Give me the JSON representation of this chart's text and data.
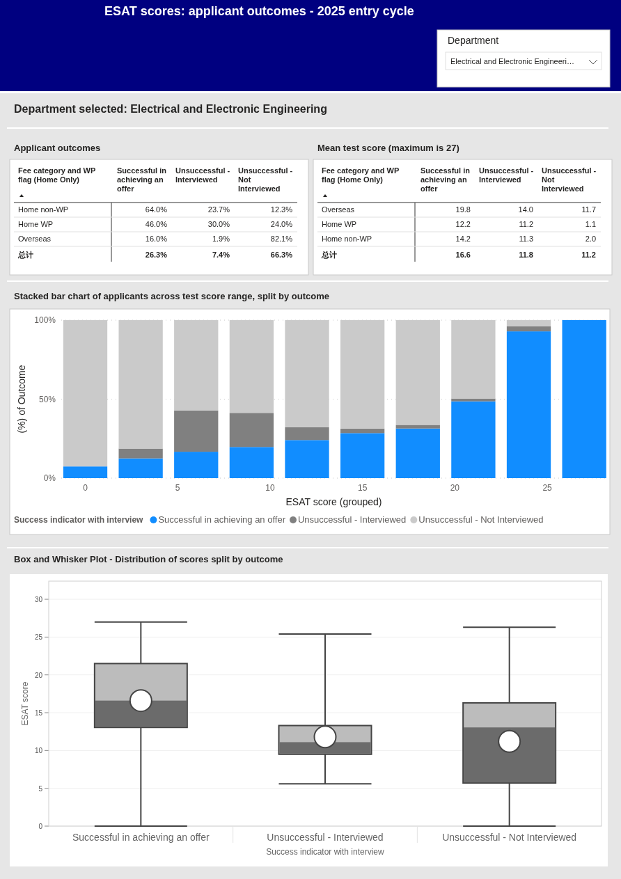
{
  "chart_data": [
    {
      "type": "other",
      "title": "ESAT scores: applicant outcomes - 2025 entry cycle",
      "annotations": [
        "Department",
        "Electrical and Electronic Engineeri…",
        "Department selected: Electrical and Electronic Engineering"
      ]
    },
    {
      "type": "other",
      "title": "Applicant outcomes",
      "ylabel": "Fee category and WP flag (Home Only)",
      "categories": [
        "Successful in achieving an offer",
        "Unsuccessful - Interviewed",
        "Unsuccessful - Not Interviewed"
      ],
      "y_categories": [
        "Home non-WP",
        "Home WP",
        "Overseas",
        "总计"
      ],
      "cell_labels": [
        [
          "64.0%",
          "23.7%",
          "12.3%"
        ],
        [
          "46.0%",
          "30.0%",
          "24.0%"
        ],
        [
          "16.0%",
          "1.9%",
          "82.1%"
        ],
        [
          "26.3%",
          "7.4%",
          "66.3%"
        ]
      ]
    },
    {
      "type": "other",
      "title": "Mean test score (maximum is 27)",
      "ylabel": "Fee category and WP flag (Home Only)",
      "categories": [
        "Successful in achieving an offer",
        "Unsuccessful - Interviewed",
        "Unsuccessful - Not Interviewed"
      ],
      "y_categories": [
        "Overseas",
        "Home WP",
        "Home non-WP",
        "总计"
      ],
      "cell_labels": [
        [
          "19.8",
          "14.0",
          "11.7"
        ],
        [
          "12.2",
          "11.2",
          "1.1"
        ],
        [
          "14.2",
          "11.3",
          "2.0"
        ],
        [
          "16.6",
          "11.8",
          "11.2"
        ]
      ]
    },
    {
      "type": "bar",
      "stacked": true,
      "title": "Stacked bar chart of applicants across test score range, split by outcome",
      "xlabel": "ESAT score (grouped)",
      "ylabel": "(%) of Outcome",
      "x": [
        0,
        3,
        6,
        9,
        12,
        15,
        18,
        21,
        24,
        27
      ],
      "xlim": [
        -1.3,
        28.2
      ],
      "xticks": [
        0,
        5,
        10,
        15,
        20,
        25
      ],
      "ylim": [
        0,
        100
      ],
      "yticks": [
        {
          "value": 0,
          "label": "0%"
        },
        {
          "value": 50,
          "label": "50%"
        },
        {
          "value": 100,
          "label": "100%"
        }
      ],
      "grid": "y",
      "legend": "bottom",
      "legend_title": "Success indicator with interview",
      "series": [
        {
          "name": "Successful in achieving an offer",
          "color": "#118dff",
          "values": [
            7.4,
            12.5,
            16.7,
            19.7,
            24.1,
            28.5,
            31.4,
            48.6,
            92.9,
            100
          ]
        },
        {
          "name": "Unsuccessful - Interviewed",
          "color": "#808080",
          "values": [
            0,
            6.2,
            26.1,
            21.6,
            8.1,
            2.9,
            2.3,
            1.8,
            3.2,
            0
          ]
        },
        {
          "name": "Unsuccessful - Not Interviewed",
          "color": "#cacaca",
          "values": [
            92.6,
            81.3,
            57.2,
            58.7,
            67.8,
            68.6,
            66.3,
            49.6,
            3.9,
            0
          ]
        }
      ]
    },
    {
      "type": "box",
      "title": "Box and Whisker Plot - Distribution of scores split by outcome",
      "xlabel": "Success indicator with interview",
      "ylabel": "ESAT score",
      "categories": [
        "Successful in achieving an offer",
        "Unsuccessful - Interviewed",
        "Unsuccessful - Not Interviewed"
      ],
      "ylim": [
        0,
        32.4
      ],
      "yticks": [
        0,
        5,
        10,
        15,
        20,
        25,
        30
      ],
      "grid": "y",
      "color": "#6b6b6b",
      "boxes": [
        {
          "low": 0,
          "q1": 13.05,
          "median": 16.6,
          "q3": 21.5,
          "high": 27.0,
          "mean": 16.6
        },
        {
          "low": 5.6,
          "q1": 9.5,
          "median": 11.1,
          "q3": 13.3,
          "high": 25.4,
          "mean": 11.8
        },
        {
          "low": 0,
          "q1": 5.7,
          "median": 13.05,
          "q3": 16.3,
          "high": 26.3,
          "mean": 11.2
        }
      ]
    }
  ]
}
